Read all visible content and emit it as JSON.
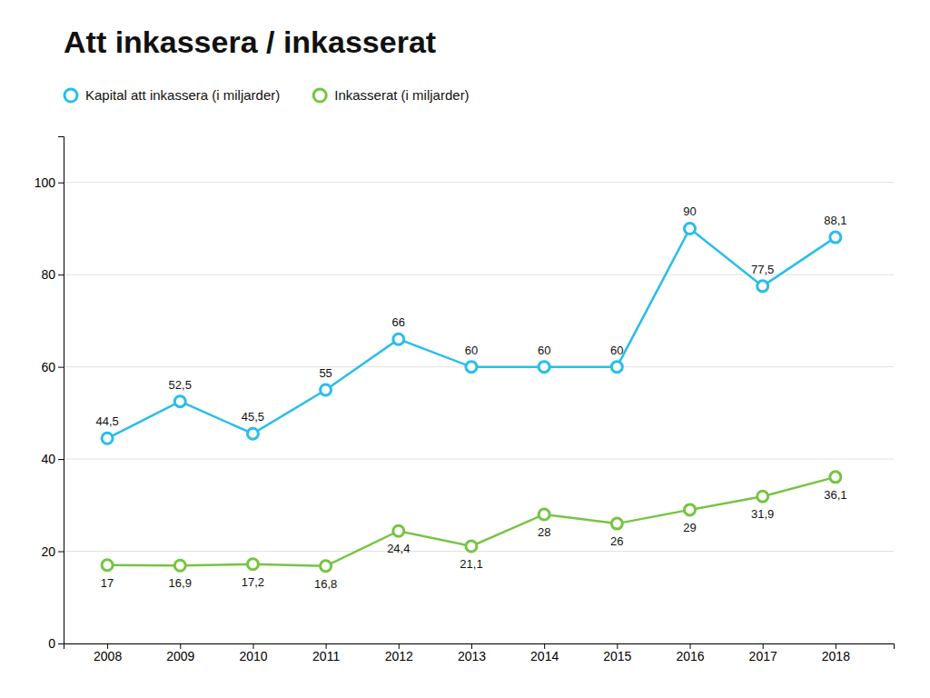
{
  "chart_data": {
    "type": "line",
    "title": "Att inkassera / inkasserat",
    "x": [
      2008,
      2009,
      2010,
      2011,
      2012,
      2013,
      2014,
      2015,
      2016,
      2017,
      2018
    ],
    "series": [
      {
        "name": "Kapital att inkassera (i miljarder)",
        "color": "#29BDEB",
        "marker": "circle",
        "values": [
          44.5,
          52.5,
          45.5,
          55,
          66,
          60,
          60,
          60,
          90,
          77.5,
          88.1
        ],
        "value_labels": [
          "44,5",
          "52,5",
          "45,5",
          "55",
          "66",
          "60",
          "60",
          "60",
          "90",
          "77,5",
          "88,1"
        ]
      },
      {
        "name": "Inkasserat (i miljarder)",
        "color": "#76C442",
        "marker": "circle",
        "values": [
          17,
          16.9,
          17.2,
          16.8,
          24.4,
          21.1,
          28,
          26,
          29,
          31.9,
          36.1
        ],
        "value_labels": [
          "17",
          "16,9",
          "17,2",
          "16,8",
          "24,4",
          "21,1",
          "28",
          "26",
          "29",
          "31,9",
          "36,1"
        ]
      }
    ],
    "xlim": [
      2007.4,
      2018.8
    ],
    "xticks": [
      2008,
      2009,
      2010,
      2011,
      2012,
      2013,
      2014,
      2015,
      2016,
      2017,
      2018
    ],
    "ylim": [
      0,
      110
    ],
    "yticks": [
      0,
      20,
      40,
      60,
      80,
      100
    ],
    "grid": true,
    "legend": "top-left",
    "data_labels": true
  }
}
